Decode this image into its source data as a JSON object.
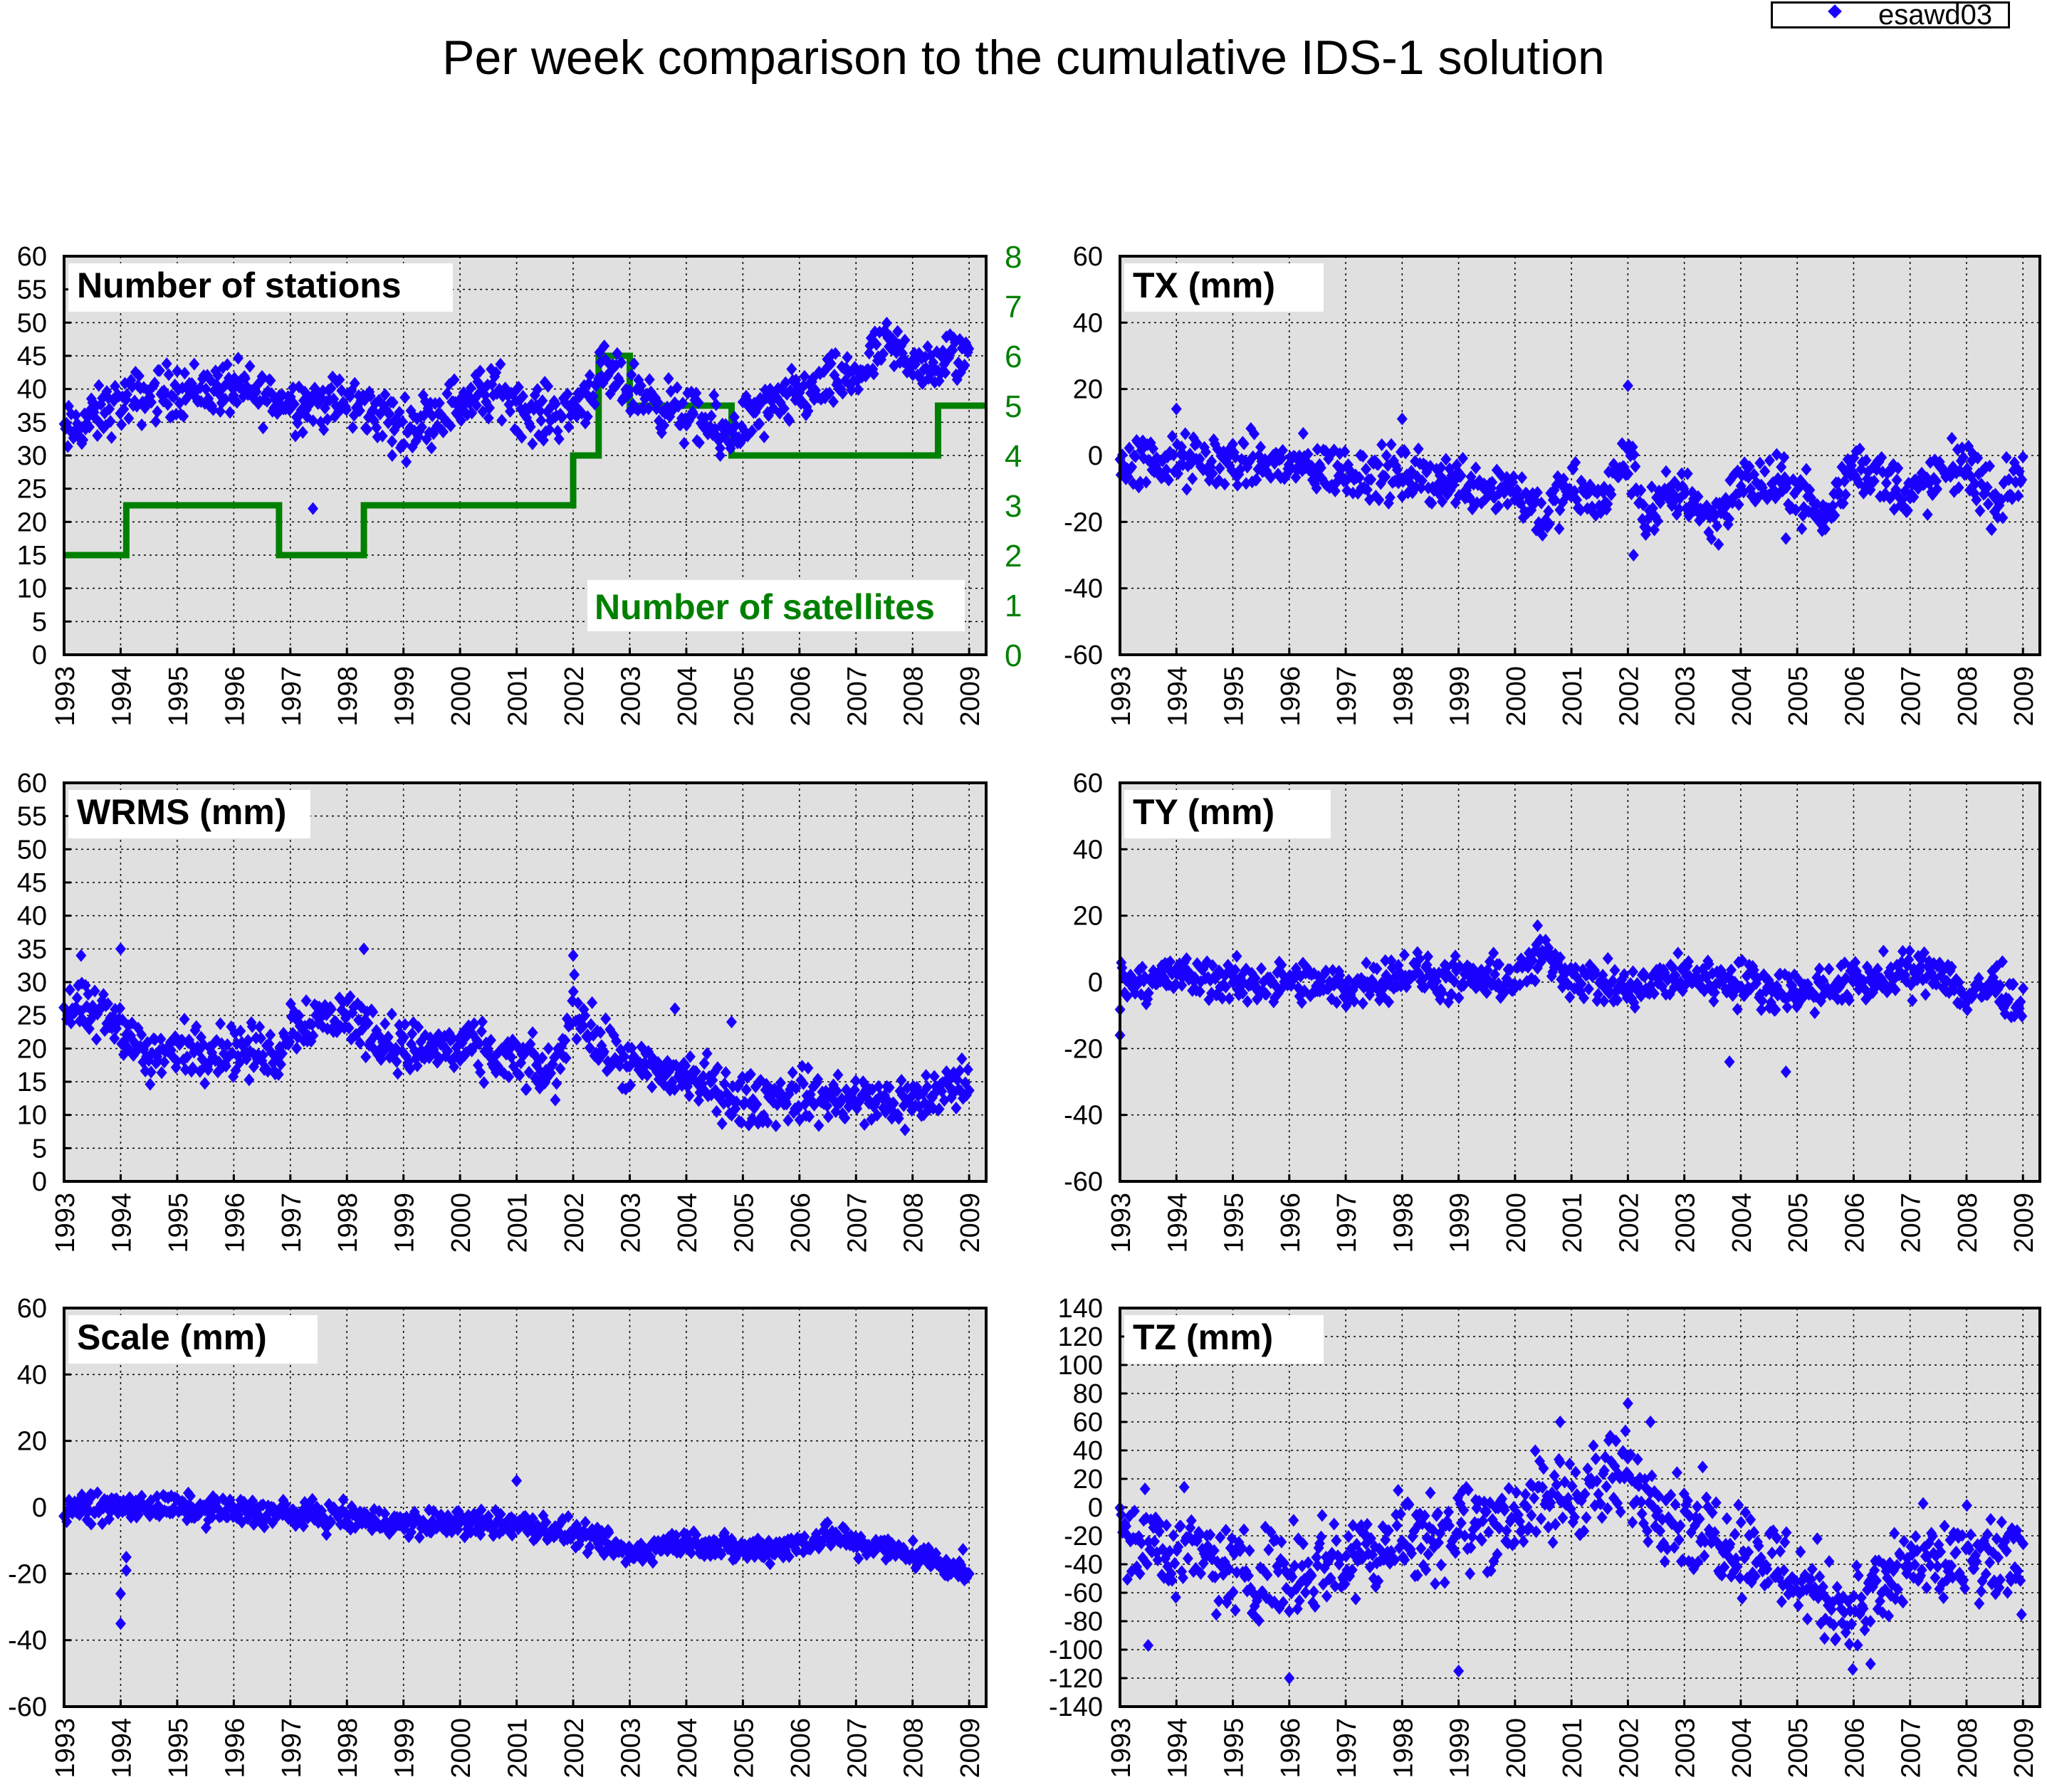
{
  "figure": {
    "title": "Per week comparison to the cumulative IDS-1 solution",
    "legend_label": "esawd03",
    "marker_color": "#1a00ff",
    "satellite_color": "#008000",
    "panel_background": "#e0e0e0"
  },
  "chart_data": [
    {
      "type": "scatter",
      "title": "Number of stations",
      "xlabel": "",
      "ylabel": "",
      "xlim": [
        1993,
        2009.3
      ],
      "ylim": [
        0,
        60
      ],
      "yticks": [
        0,
        5,
        10,
        15,
        20,
        25,
        30,
        35,
        40,
        45,
        50,
        55,
        60
      ],
      "xticks": [
        1993,
        1994,
        1995,
        1996,
        1997,
        1998,
        1999,
        2000,
        2001,
        2002,
        2003,
        2004,
        2005,
        2006,
        2007,
        2008,
        2009
      ],
      "grid": true,
      "legend": "top-right",
      "series": [
        {
          "name": "esawd03",
          "trend": [
            [
              1993.0,
              33
            ],
            [
              1994.0,
              38
            ],
            [
              1995.0,
              40
            ],
            [
              1996.0,
              40
            ],
            [
              1997.0,
              38
            ],
            [
              1998.0,
              38
            ],
            [
              1998.7,
              36
            ],
            [
              1999.0,
              34
            ],
            [
              2000.0,
              38
            ],
            [
              2000.8,
              40
            ],
            [
              2001.2,
              36
            ],
            [
              2002.0,
              37
            ],
            [
              2002.5,
              42
            ],
            [
              2003.0,
              40
            ],
            [
              2004.0,
              36
            ],
            [
              2004.7,
              33
            ],
            [
              2005.0,
              35
            ],
            [
              2006.0,
              39
            ],
            [
              2007.0,
              42
            ],
            [
              2007.5,
              46
            ],
            [
              2008.0,
              45
            ],
            [
              2008.3,
              42
            ],
            [
              2008.6,
              45
            ],
            [
              2009.0,
              45
            ]
          ],
          "spread": 2.5,
          "outliers": [
            [
              1997.4,
              22
            ],
            [
              2004.6,
              30
            ],
            [
              1998.8,
              30
            ]
          ]
        }
      ],
      "secondary_axis": {
        "label": "Number of satellites",
        "ylim": [
          0,
          8
        ],
        "yticks": [
          0,
          1,
          2,
          3,
          4,
          5,
          6,
          7,
          8
        ],
        "steps": [
          [
            1993.0,
            2
          ],
          [
            1994.1,
            3
          ],
          [
            1996.8,
            2
          ],
          [
            1998.3,
            3
          ],
          [
            2002.0,
            4
          ],
          [
            2002.45,
            6
          ],
          [
            2003.0,
            5
          ],
          [
            2004.8,
            4
          ],
          [
            2008.45,
            5
          ],
          [
            2009.3,
            5
          ]
        ]
      }
    },
    {
      "type": "scatter",
      "title": "TX (mm)",
      "xlabel": "",
      "ylabel": "",
      "xlim": [
        1993,
        2009.3
      ],
      "ylim": [
        -60,
        60
      ],
      "yticks": [
        -60,
        -40,
        -20,
        0,
        20,
        40,
        60
      ],
      "xticks": [
        1993,
        1994,
        1995,
        1996,
        1997,
        1998,
        1999,
        2000,
        2001,
        2002,
        2003,
        2004,
        2005,
        2006,
        2007,
        2008,
        2009
      ],
      "grid": true,
      "series": [
        {
          "name": "esawd03",
          "trend": [
            [
              1993.0,
              -2
            ],
            [
              1994.0,
              -2
            ],
            [
              1995.0,
              -2
            ],
            [
              1996.0,
              -3
            ],
            [
              1997.0,
              -5
            ],
            [
              1998.0,
              -6
            ],
            [
              1999.0,
              -8
            ],
            [
              2000.0,
              -10
            ],
            [
              2000.5,
              -18
            ],
            [
              2001.0,
              -10
            ],
            [
              2001.5,
              -15
            ],
            [
              2002.0,
              0
            ],
            [
              2002.3,
              -18
            ],
            [
              2003.0,
              -10
            ],
            [
              2003.5,
              -20
            ],
            [
              2004.0,
              -8
            ],
            [
              2005.0,
              -10
            ],
            [
              2005.5,
              -20
            ],
            [
              2006.0,
              -2
            ],
            [
              2007.0,
              -12
            ],
            [
              2008.0,
              -2
            ],
            [
              2008.5,
              -15
            ],
            [
              2009.0,
              -3
            ]
          ],
          "spread": 5,
          "outliers": [
            [
              1994.0,
              14
            ],
            [
              2002.0,
              21
            ],
            [
              2002.1,
              -30
            ],
            [
              2004.8,
              -25
            ],
            [
              1998.0,
              11
            ]
          ]
        }
      ]
    },
    {
      "type": "scatter",
      "title": "WRMS (mm)",
      "xlabel": "",
      "ylabel": "",
      "xlim": [
        1993,
        2009.3
      ],
      "ylim": [
        0,
        60
      ],
      "yticks": [
        0,
        5,
        10,
        15,
        20,
        25,
        30,
        35,
        40,
        45,
        50,
        55,
        60
      ],
      "xticks": [
        1993,
        1994,
        1995,
        1996,
        1997,
        1998,
        1999,
        2000,
        2001,
        2002,
        2003,
        2004,
        2005,
        2006,
        2007,
        2008,
        2009
      ],
      "grid": true,
      "series": [
        {
          "name": "esawd03",
          "trend": [
            [
              1993.0,
              26
            ],
            [
              1994.0,
              24
            ],
            [
              1994.5,
              18
            ],
            [
              1995.0,
              20
            ],
            [
              1996.0,
              20
            ],
            [
              1996.8,
              19
            ],
            [
              1997.0,
              24
            ],
            [
              1998.0,
              25
            ],
            [
              1999.0,
              20
            ],
            [
              2000.0,
              20
            ],
            [
              2001.0,
              18
            ],
            [
              2001.7,
              16
            ],
            [
              2002.0,
              27
            ],
            [
              2002.5,
              20
            ],
            [
              2003.0,
              17
            ],
            [
              2004.0,
              16
            ],
            [
              2005.0,
              12
            ],
            [
              2006.0,
              13
            ],
            [
              2007.0,
              12
            ],
            [
              2008.0,
              12
            ],
            [
              2009.0,
              15
            ]
          ],
          "spread": 2.5,
          "outliers": [
            [
              1993.3,
              34
            ],
            [
              1994.0,
              35
            ],
            [
              1998.3,
              35
            ],
            [
              2002.0,
              34
            ],
            [
              2004.8,
              24
            ],
            [
              2003.8,
              26
            ]
          ]
        }
      ]
    },
    {
      "type": "scatter",
      "title": "TY (mm)",
      "xlabel": "",
      "ylabel": "",
      "xlim": [
        1993,
        2009.3
      ],
      "ylim": [
        -60,
        60
      ],
      "yticks": [
        -60,
        -40,
        -20,
        0,
        20,
        40,
        60
      ],
      "xticks": [
        1993,
        1994,
        1995,
        1996,
        1997,
        1998,
        1999,
        2000,
        2001,
        2002,
        2003,
        2004,
        2005,
        2006,
        2007,
        2008,
        2009
      ],
      "grid": true,
      "series": [
        {
          "name": "esawd03",
          "trend": [
            [
              1993.0,
              0
            ],
            [
              1994.0,
              2
            ],
            [
              1995.0,
              0
            ],
            [
              1996.0,
              0
            ],
            [
              1997.0,
              -2
            ],
            [
              1998.0,
              3
            ],
            [
              1999.0,
              0
            ],
            [
              2000.0,
              1
            ],
            [
              2000.5,
              8
            ],
            [
              2001.0,
              2
            ],
            [
              2002.0,
              -3
            ],
            [
              2003.0,
              2
            ],
            [
              2004.0,
              0
            ],
            [
              2005.0,
              -3
            ],
            [
              2006.0,
              0
            ],
            [
              2007.0,
              2
            ],
            [
              2007.5,
              5
            ],
            [
              2008.0,
              -5
            ],
            [
              2008.5,
              0
            ],
            [
              2009.0,
              -8
            ]
          ],
          "spread": 4,
          "outliers": [
            [
              1993.0,
              -16
            ],
            [
              2003.8,
              -24
            ],
            [
              2004.8,
              -27
            ],
            [
              2000.4,
              17
            ]
          ]
        }
      ]
    },
    {
      "type": "scatter",
      "title": "Scale (mm)",
      "xlabel": "",
      "ylabel": "",
      "xlim": [
        1993,
        2009.3
      ],
      "ylim": [
        -60,
        60
      ],
      "yticks": [
        -60,
        -40,
        -20,
        0,
        20,
        40,
        60
      ],
      "xticks": [
        1993,
        1994,
        1995,
        1996,
        1997,
        1998,
        1999,
        2000,
        2001,
        2002,
        2003,
        2004,
        2005,
        2006,
        2007,
        2008,
        2009
      ],
      "grid": true,
      "series": [
        {
          "name": "esawd03",
          "trend": [
            [
              1993.0,
              0
            ],
            [
              1994.0,
              0
            ],
            [
              1995.0,
              0
            ],
            [
              1996.0,
              -1
            ],
            [
              1997.0,
              -2
            ],
            [
              1998.0,
              -3
            ],
            [
              1999.0,
              -5
            ],
            [
              2000.0,
              -5
            ],
            [
              2001.0,
              -5
            ],
            [
              2002.0,
              -8
            ],
            [
              2003.0,
              -14
            ],
            [
              2004.0,
              -10
            ],
            [
              2005.0,
              -13
            ],
            [
              2006.0,
              -11
            ],
            [
              2006.5,
              -8
            ],
            [
              2007.0,
              -11
            ],
            [
              2008.0,
              -14
            ],
            [
              2009.0,
              -19
            ]
          ],
          "spread": 2.5,
          "outliers": [
            [
              1994.0,
              -35
            ],
            [
              1994.0,
              -26
            ],
            [
              1994.1,
              -19
            ],
            [
              1994.1,
              -15
            ],
            [
              2001.0,
              8
            ]
          ]
        }
      ]
    },
    {
      "type": "scatter",
      "title": "TZ (mm)",
      "xlabel": "",
      "ylabel": "",
      "xlim": [
        1993,
        2009.3
      ],
      "ylim": [
        -140,
        140
      ],
      "yticks": [
        -140,
        -120,
        -100,
        -80,
        -60,
        -40,
        -20,
        0,
        20,
        40,
        60,
        80,
        100,
        120,
        140
      ],
      "xticks": [
        1993,
        1994,
        1995,
        1996,
        1997,
        1998,
        1999,
        2000,
        2001,
        2002,
        2003,
        2004,
        2005,
        2006,
        2007,
        2008,
        2009
      ],
      "grid": true,
      "series": [
        {
          "name": "esawd03",
          "trend": [
            [
              1993.0,
              -20
            ],
            [
              1994.0,
              -30
            ],
            [
              1995.0,
              -45
            ],
            [
              1996.0,
              -45
            ],
            [
              1997.0,
              -35
            ],
            [
              1998.0,
              -20
            ],
            [
              1999.0,
              -15
            ],
            [
              2000.0,
              -5
            ],
            [
              2001.0,
              10
            ],
            [
              2002.0,
              20
            ],
            [
              2003.0,
              -10
            ],
            [
              2004.0,
              -25
            ],
            [
              2005.0,
              -50
            ],
            [
              2006.0,
              -75
            ],
            [
              2007.0,
              -40
            ],
            [
              2008.0,
              -40
            ],
            [
              2009.0,
              -40
            ]
          ],
          "spread": 20,
          "outliers": [
            [
              1996.0,
              -120
            ],
            [
              1999.0,
              -115
            ],
            [
              2006.3,
              -110
            ],
            [
              2002.0,
              73
            ],
            [
              2000.8,
              60
            ],
            [
              2002.4,
              60
            ],
            [
              1993.5,
              -97
            ]
          ]
        }
      ]
    }
  ]
}
